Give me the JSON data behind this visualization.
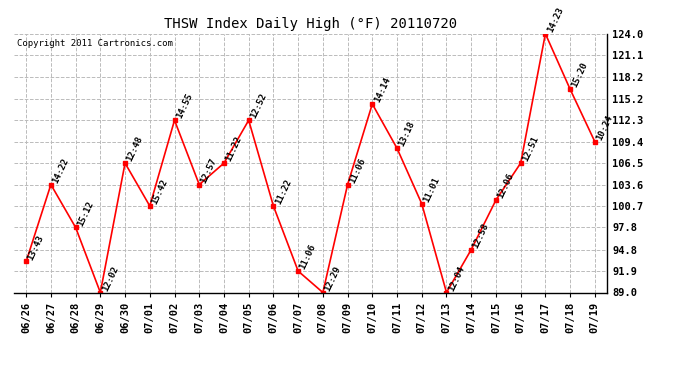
{
  "title": "THSW Index Daily High (°F) 20110720",
  "copyright": "Copyright 2011 Cartronics.com",
  "dates": [
    "06/26",
    "06/27",
    "06/28",
    "06/29",
    "06/30",
    "07/01",
    "07/02",
    "07/03",
    "07/04",
    "07/05",
    "07/06",
    "07/07",
    "07/08",
    "07/09",
    "07/10",
    "07/11",
    "07/12",
    "07/13",
    "07/14",
    "07/15",
    "07/16",
    "07/17",
    "07/18",
    "07/19"
  ],
  "values": [
    93.2,
    103.6,
    97.8,
    89.0,
    106.5,
    100.7,
    112.3,
    103.6,
    106.5,
    112.3,
    100.7,
    91.9,
    89.0,
    103.6,
    114.5,
    108.5,
    101.0,
    89.0,
    94.8,
    101.5,
    106.5,
    124.0,
    116.5,
    109.4
  ],
  "labels": [
    "13:43",
    "14:22",
    "15:12",
    "12:02",
    "12:48",
    "15:42",
    "14:55",
    "12:57",
    "11:22",
    "12:52",
    "11:22",
    "11:06",
    "12:29",
    "11:06",
    "14:14",
    "13:18",
    "11:01",
    "12:04",
    "12:58",
    "12:06",
    "12:51",
    "14:23",
    "15:20",
    "10:24"
  ],
  "ylim": [
    89.0,
    124.0
  ],
  "yticks": [
    89.0,
    91.9,
    94.8,
    97.8,
    100.7,
    103.6,
    106.5,
    109.4,
    112.3,
    115.2,
    118.2,
    121.1,
    124.0
  ],
  "line_color": "red",
  "marker_color": "red",
  "bg_color": "white",
  "grid_color": "#bbbbbb",
  "title_fontsize": 10,
  "label_fontsize": 6.5,
  "tick_fontsize": 7.5,
  "copyright_fontsize": 6.5
}
